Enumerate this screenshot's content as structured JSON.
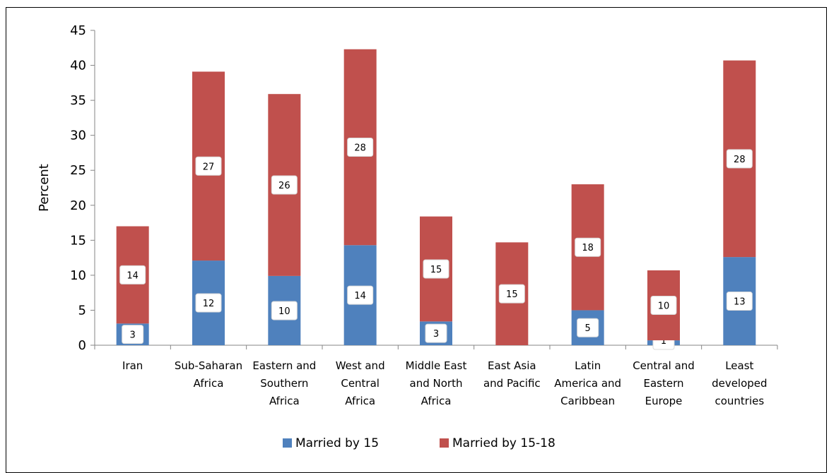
{
  "chart_data": {
    "type": "bar",
    "stacked": true,
    "ylabel": "Percent",
    "ylim": [
      0,
      45
    ],
    "yticks": [
      0,
      5,
      10,
      15,
      20,
      25,
      30,
      35,
      40,
      45
    ],
    "grid": false,
    "legend_position": "bottom",
    "categories": [
      "Iran",
      "Sub-Saharan Africa",
      "Eastern and Southern Africa",
      "West and Central Africa",
      "Middle East and North Africa",
      "East Asia and Pacific",
      "Latin America and Caribbean",
      "Central and Eastern Europe",
      "Least developed countries"
    ],
    "category_lines": [
      [
        "Iran"
      ],
      [
        "Sub-Saharan",
        "Africa"
      ],
      [
        "Eastern and",
        "Southern",
        "Africa"
      ],
      [
        "West and",
        "Central",
        "Africa"
      ],
      [
        "Middle East",
        "and North",
        "Africa"
      ],
      [
        "East Asia",
        "and Pacific"
      ],
      [
        "Latin",
        "America and",
        "Caribbean"
      ],
      [
        "Central and",
        "Eastern",
        "Europe"
      ],
      [
        "Least",
        "developed",
        "countries"
      ]
    ],
    "series": [
      {
        "name": "Married by 15",
        "color": "#4f81bd",
        "values": [
          3.1,
          12.1,
          9.9,
          14.3,
          3.4,
          0,
          5.0,
          0.7,
          12.6
        ],
        "labels": [
          "3",
          "12",
          "10",
          "14",
          "3",
          "",
          "5",
          "1",
          "13"
        ]
      },
      {
        "name": "Married by 15-18",
        "color": "#c0504d",
        "values": [
          13.9,
          27.0,
          26.0,
          28.0,
          15.0,
          14.7,
          18.0,
          10.0,
          28.1
        ],
        "labels": [
          "14",
          "27",
          "26",
          "28",
          "15",
          "15",
          "18",
          "10",
          "28"
        ]
      }
    ]
  }
}
